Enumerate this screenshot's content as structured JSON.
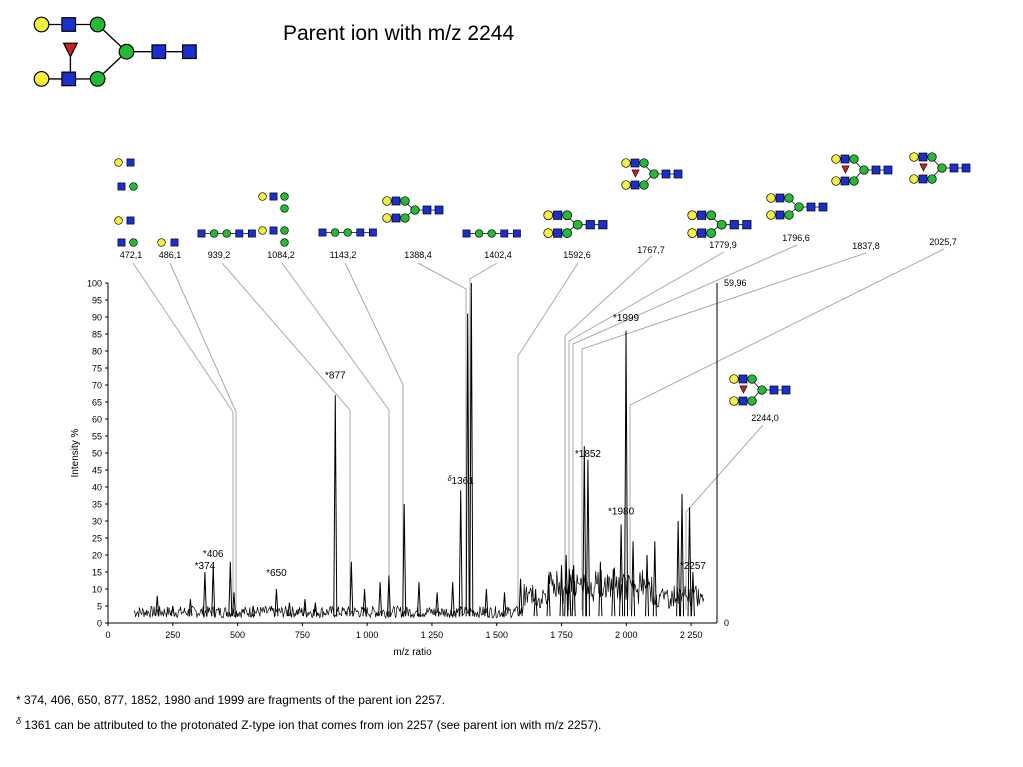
{
  "title": "Parent ion with m/z 2244",
  "colors": {
    "galactose": "#f5f03c",
    "glcnac": "#1a2fd0",
    "mannose": "#22bb33",
    "fucose": "#cc1f1f",
    "line": "#000000"
  },
  "chart_data": {
    "type": "line",
    "title": "",
    "xlabel": "m/z ratio",
    "ylabel": "Intensity %",
    "xlim": [
      0,
      2350
    ],
    "ylim": [
      0,
      100
    ],
    "x_ticks": [
      0,
      250,
      500,
      750,
      1000,
      1250,
      1500,
      1750,
      2000,
      2250
    ],
    "x_tick_labels": [
      "0",
      "250",
      "500",
      "750",
      "1 000",
      "1 250",
      "1 500",
      "1 750",
      "2 000",
      "2 250"
    ],
    "y_ticks": [
      0,
      5,
      10,
      15,
      20,
      25,
      30,
      35,
      40,
      45,
      50,
      55,
      60,
      65,
      70,
      75,
      80,
      85,
      90,
      95,
      100
    ],
    "right_axis_labels": {
      "top": "59,96",
      "bottom": "0"
    },
    "baseline_range": [
      100,
      2300
    ],
    "peaks": [
      {
        "x": 190,
        "y": 8
      },
      {
        "x": 250,
        "y": 5
      },
      {
        "x": 318,
        "y": 7
      },
      {
        "x": 374,
        "y": 15
      },
      {
        "x": 406,
        "y": 17
      },
      {
        "x": 472,
        "y": 18
      },
      {
        "x": 486,
        "y": 9
      },
      {
        "x": 560,
        "y": 5
      },
      {
        "x": 650,
        "y": 10
      },
      {
        "x": 700,
        "y": 6
      },
      {
        "x": 760,
        "y": 7
      },
      {
        "x": 800,
        "y": 6
      },
      {
        "x": 877,
        "y": 67
      },
      {
        "x": 939,
        "y": 18
      },
      {
        "x": 990,
        "y": 10
      },
      {
        "x": 1050,
        "y": 12
      },
      {
        "x": 1084,
        "y": 14
      },
      {
        "x": 1143,
        "y": 35
      },
      {
        "x": 1200,
        "y": 12
      },
      {
        "x": 1270,
        "y": 9
      },
      {
        "x": 1330,
        "y": 12
      },
      {
        "x": 1361,
        "y": 39
      },
      {
        "x": 1388,
        "y": 91
      },
      {
        "x": 1402,
        "y": 100
      },
      {
        "x": 1460,
        "y": 10
      },
      {
        "x": 1530,
        "y": 9
      },
      {
        "x": 1592,
        "y": 13
      },
      {
        "x": 1650,
        "y": 10
      },
      {
        "x": 1700,
        "y": 14
      },
      {
        "x": 1750,
        "y": 17
      },
      {
        "x": 1768,
        "y": 20
      },
      {
        "x": 1780,
        "y": 16
      },
      {
        "x": 1797,
        "y": 17
      },
      {
        "x": 1838,
        "y": 52
      },
      {
        "x": 1852,
        "y": 48
      },
      {
        "x": 1900,
        "y": 18
      },
      {
        "x": 1950,
        "y": 16
      },
      {
        "x": 1980,
        "y": 29
      },
      {
        "x": 1999,
        "y": 86
      },
      {
        "x": 2026,
        "y": 24
      },
      {
        "x": 2080,
        "y": 20
      },
      {
        "x": 2110,
        "y": 24
      },
      {
        "x": 2200,
        "y": 30
      },
      {
        "x": 2215,
        "y": 38
      },
      {
        "x": 2244,
        "y": 34
      },
      {
        "x": 2257,
        "y": 15
      }
    ],
    "peak_labels": [
      {
        "text": "*374",
        "x": 374,
        "y": 15
      },
      {
        "text": "*406",
        "x": 406,
        "y": 18.5
      },
      {
        "text": "*650",
        "x": 650,
        "y": 13
      },
      {
        "text": "*877",
        "x": 877,
        "y": 71
      },
      {
        "text": "1361",
        "prefix": "δ",
        "x": 1361,
        "y": 40
      },
      {
        "text": "*1852",
        "x": 1852,
        "y": 48
      },
      {
        "text": "*1980",
        "x": 1980,
        "y": 31
      },
      {
        "text": "*1999",
        "x": 1999,
        "y": 88
      },
      {
        "text": "*2257",
        "x": 2257,
        "y": 15
      }
    ],
    "structure_labels": [
      "472,1",
      "486,1",
      "939,2",
      "1084,2",
      "1143,2",
      "1388,4",
      "1402,4",
      "1592,6",
      "1767,7",
      "1779,9",
      "1796,6",
      "1837,8",
      "2025,7",
      "2244,0"
    ]
  },
  "footnotes": {
    "note1": "* 374, 406, 650, 877, 1852, 1980 and 1999 are fragments of the parent ion 2257.",
    "note2_symbol": "δ",
    "note2": "1361 can be attributed to the protonated Z-type ion that comes from ion 2257 (see parent ion with m/z 2257)."
  }
}
